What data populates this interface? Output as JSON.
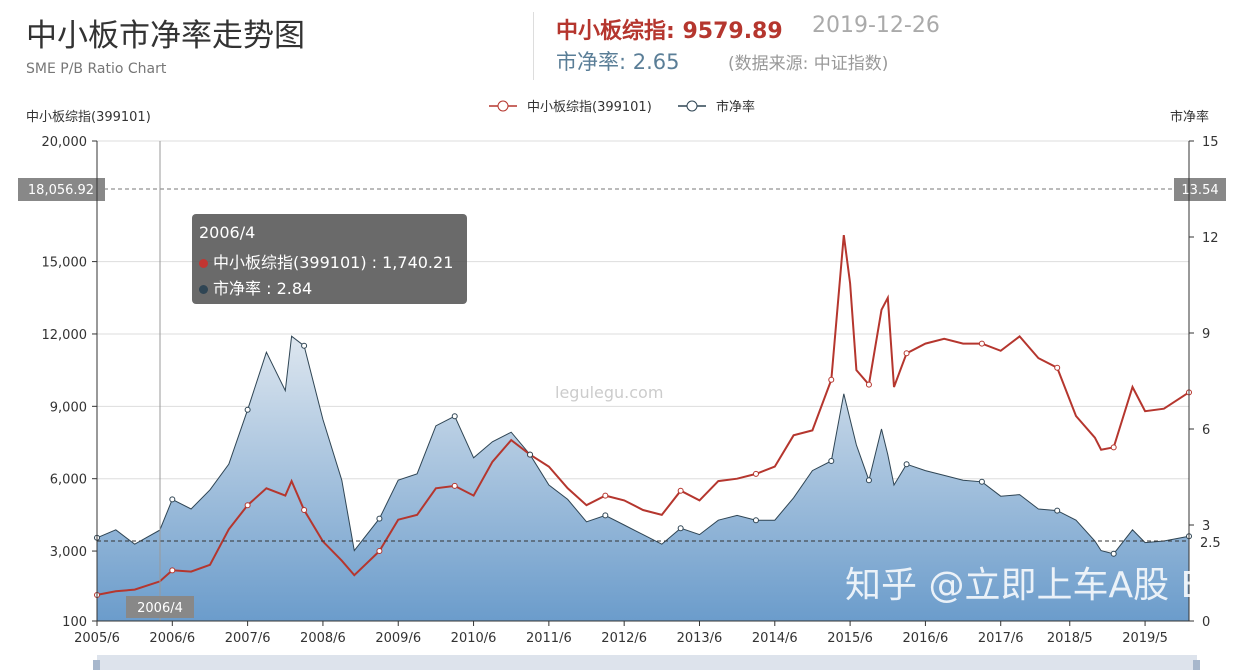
{
  "header": {
    "title": "中小板市净率走势图",
    "subtitle": "SME P/B Ratio Chart",
    "index_label": "中小板综指: 9579.89",
    "date": "2019-12-26",
    "pb_label": "市净率:  2.65",
    "source": "(数据来源: 中证指数)"
  },
  "tooltip": {
    "date": "2006/4",
    "line1": "中小板综指(399101) : 1,740.21",
    "line2": "市净率 : 2.84"
  },
  "markers": {
    "left_value": "18,056.92",
    "right_value": "13.54",
    "right_line": "2.5",
    "cursor_label": "2006/4"
  },
  "watermarks": {
    "site": "legulegu.com",
    "zhihu": "知乎 @立即上车A股 E"
  },
  "colors": {
    "index": "#b5362e",
    "pb": "#2f4554",
    "area_top": "#dde6ef",
    "area_bottom": "#6b9ccb"
  },
  "chart_data": {
    "type": "line",
    "x_label_left": "中小板综指(399101)",
    "y_label_right": "市净率",
    "legend": [
      "中小板综指(399101)",
      "市净率"
    ],
    "legend_position": "top-center",
    "x_ticks": [
      "2005/6",
      "2006/6",
      "2007/6",
      "2008/6",
      "2009/6",
      "2010/6",
      "2011/6",
      "2012/6",
      "2013/6",
      "2014/6",
      "2015/6",
      "2016/6",
      "2017/6",
      "2018/5",
      "2019/5"
    ],
    "y_left_ticks": [
      "20,000",
      "15,000",
      "12,000",
      "9,000",
      "6,000",
      "3,000",
      "100"
    ],
    "y_left_range": [
      100,
      20000
    ],
    "y_right_ticks": [
      "15",
      "12",
      "9",
      "6",
      "3",
      "0"
    ],
    "y_right_range": [
      0,
      15
    ],
    "x": [
      "2005/6",
      "2005/9",
      "2005/12",
      "2006/4",
      "2006/6",
      "2006/9",
      "2006/12",
      "2007/3",
      "2007/6",
      "2007/9",
      "2007/12",
      "2008/1",
      "2008/3",
      "2008/6",
      "2008/9",
      "2008/11",
      "2009/3",
      "2009/6",
      "2009/9",
      "2009/12",
      "2010/3",
      "2010/6",
      "2010/9",
      "2010/12",
      "2011/3",
      "2011/6",
      "2011/9",
      "2011/12",
      "2012/3",
      "2012/6",
      "2012/9",
      "2012/12",
      "2013/3",
      "2013/6",
      "2013/9",
      "2013/12",
      "2014/3",
      "2014/6",
      "2014/9",
      "2014/12",
      "2015/3",
      "2015/5",
      "2015/6",
      "2015/7",
      "2015/9",
      "2015/11",
      "2015/12",
      "2016/1",
      "2016/3",
      "2016/6",
      "2016/9",
      "2016/12",
      "2017/3",
      "2017/6",
      "2017/9",
      "2017/12",
      "2018/3",
      "2018/6",
      "2018/9",
      "2018/10",
      "2018/12",
      "2019/3",
      "2019/5",
      "2019/8",
      "2019/12"
    ],
    "series": [
      {
        "name": "中小板综指(399101)",
        "axis": "left",
        "values": [
          1180,
          1330,
          1400,
          1740,
          2200,
          2150,
          2430,
          3900,
          4900,
          5600,
          5300,
          5900,
          4700,
          3400,
          2600,
          2000,
          3000,
          4300,
          4500,
          5600,
          5700,
          5300,
          6700,
          7600,
          7000,
          6500,
          5600,
          4900,
          5300,
          5100,
          4700,
          4500,
          5500,
          5100,
          5900,
          6000,
          6200,
          6500,
          7800,
          8000,
          10100,
          16100,
          14100,
          10500,
          9900,
          13000,
          13500,
          9800,
          11200,
          11600,
          11800,
          11600,
          11600,
          11300,
          11900,
          11000,
          10600,
          8600,
          7700,
          7200,
          7300,
          9800,
          8800,
          8900,
          9580
        ]
      },
      {
        "name": "市净率",
        "axis": "right",
        "values": [
          2.6,
          2.85,
          2.4,
          2.84,
          3.8,
          3.5,
          4.1,
          4.9,
          6.6,
          8.4,
          7.2,
          8.9,
          8.6,
          6.3,
          4.4,
          2.2,
          3.2,
          4.4,
          4.6,
          6.1,
          6.4,
          5.1,
          5.6,
          5.9,
          5.2,
          4.25,
          3.8,
          3.1,
          3.3,
          3.0,
          2.7,
          2.4,
          2.9,
          2.7,
          3.15,
          3.3,
          3.15,
          3.15,
          3.85,
          4.7,
          5.0,
          7.1,
          6.3,
          5.5,
          4.4,
          6.0,
          5.2,
          4.25,
          4.9,
          4.7,
          4.55,
          4.4,
          4.35,
          3.9,
          3.95,
          3.5,
          3.45,
          3.15,
          2.5,
          2.2,
          2.1,
          2.85,
          2.45,
          2.5,
          2.65
        ]
      }
    ],
    "grid": true
  }
}
